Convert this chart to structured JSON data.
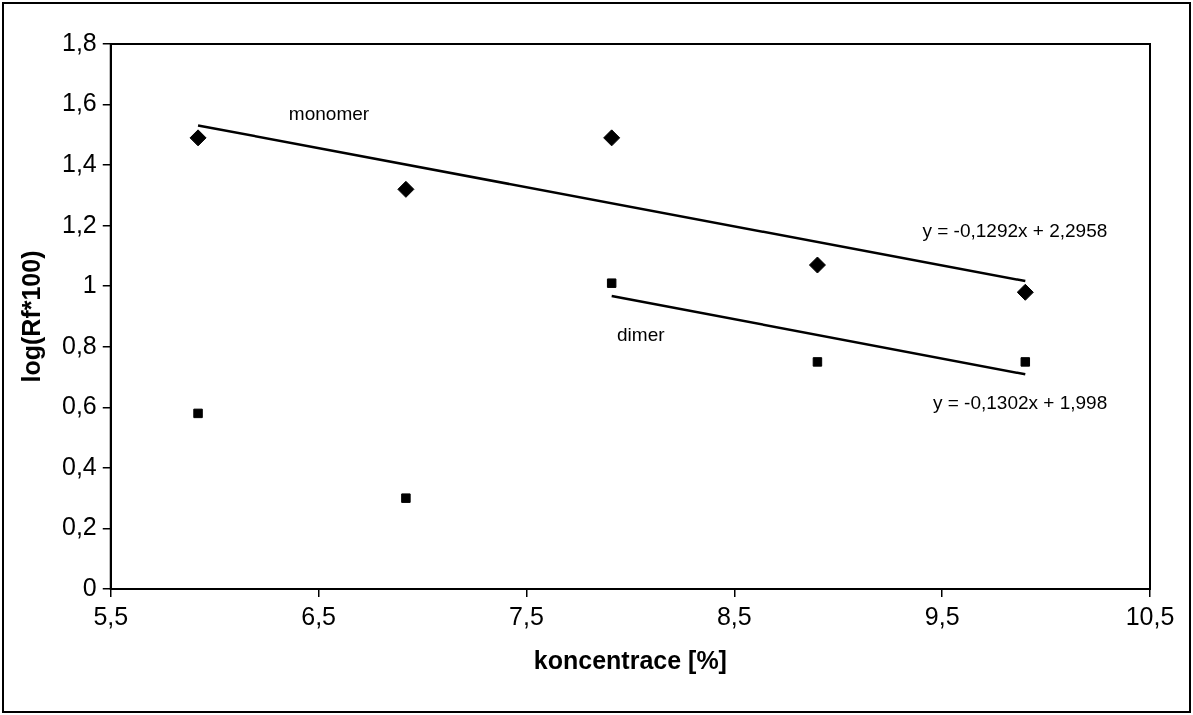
{
  "chart_data": {
    "type": "scatter",
    "xlabel": "koncentrace [%]",
    "ylabel": "log(Rf*100)",
    "xlim": [
      5.5,
      10.5
    ],
    "xticks": [
      {
        "value": 5.5,
        "label": "5,5"
      },
      {
        "value": 6.5,
        "label": "6,5"
      },
      {
        "value": 7.5,
        "label": "7,5"
      },
      {
        "value": 8.5,
        "label": "8,5"
      },
      {
        "value": 9.5,
        "label": "9,5"
      },
      {
        "value": 10.5,
        "label": "10,5"
      }
    ],
    "ylim": [
      0,
      1.8
    ],
    "yticks": [
      0,
      {
        "value": 0.2,
        "label": "0,2"
      },
      {
        "value": 0.4,
        "label": "0,4"
      },
      {
        "value": 0.6,
        "label": "0,6"
      },
      {
        "value": 0.8,
        "label": "0,8"
      },
      1,
      {
        "value": 1.2,
        "label": "1,2"
      },
      {
        "value": 1.4,
        "label": "1,4"
      },
      {
        "value": 1.6,
        "label": "1,6"
      },
      {
        "value": 1.8,
        "label": "1,8"
      }
    ],
    "grid": false,
    "legend": false,
    "series": [
      {
        "marker": "diamond",
        "color": "#000000",
        "x": [
          5.92,
          6.92,
          7.91,
          8.9,
          9.9
        ],
        "values": [
          1.49,
          1.32,
          1.49,
          1.07,
          0.98
        ]
      },
      {
        "marker": "square",
        "color": "#000000",
        "x": [
          5.92,
          6.92,
          7.91,
          8.9,
          9.9
        ],
        "values": [
          0.58,
          0.3,
          1.01,
          0.75,
          0.75
        ]
      },
      {
        "type": "line",
        "marker": "none",
        "color": "#000000",
        "x": [
          5.92,
          9.9
        ],
        "values": [
          1.531,
          1.017
        ]
      },
      {
        "type": "line",
        "marker": "none",
        "color": "#000000",
        "x": [
          7.91,
          9.9
        ],
        "values": [
          0.968,
          0.709
        ]
      }
    ],
    "annotations": [
      "monomer",
      "dimer",
      "y = -0,1292x + 2,2958",
      "y = -0,1302x + 1,998"
    ]
  }
}
